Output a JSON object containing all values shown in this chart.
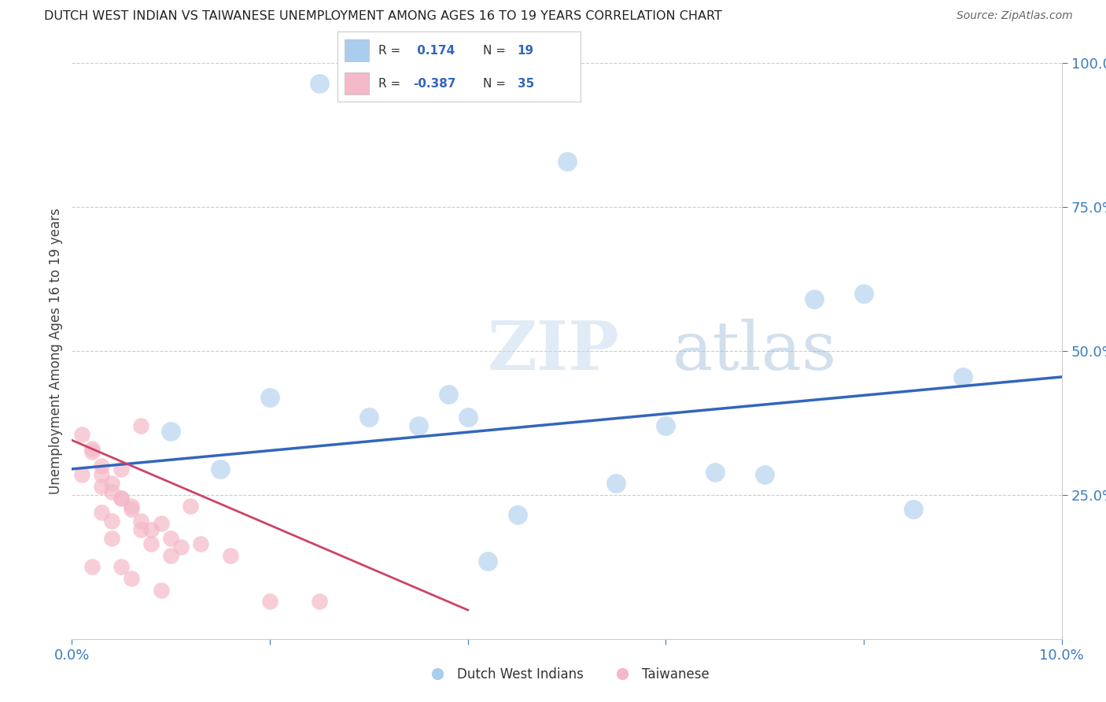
{
  "title": "DUTCH WEST INDIAN VS TAIWANESE UNEMPLOYMENT AMONG AGES 16 TO 19 YEARS CORRELATION CHART",
  "source": "Source: ZipAtlas.com",
  "ylabel": "Unemployment Among Ages 16 to 19 years",
  "xlim": [
    0.0,
    0.1
  ],
  "ylim": [
    0.0,
    1.0
  ],
  "xticks": [
    0.0,
    0.02,
    0.04,
    0.06,
    0.08,
    0.1
  ],
  "yticks": [
    0.25,
    0.5,
    0.75,
    1.0
  ],
  "xtick_labels": [
    "0.0%",
    "",
    "",
    "",
    "",
    "10.0%"
  ],
  "ytick_labels": [
    "25.0%",
    "50.0%",
    "75.0%",
    "100.0%"
  ],
  "blue_R": 0.174,
  "blue_N": 19,
  "pink_R": -0.387,
  "pink_N": 35,
  "blue_color": "#aaccee",
  "pink_color": "#f4b8c8",
  "blue_line_color": "#3366bb",
  "pink_line_color": "#cc4466",
  "watermark_zip": "ZIP",
  "watermark_atlas": "atlas",
  "blue_scatter_x": [
    0.025,
    0.01,
    0.015,
    0.02,
    0.03,
    0.035,
    0.04,
    0.05,
    0.055,
    0.06,
    0.07,
    0.075,
    0.085,
    0.09,
    0.045,
    0.038,
    0.065,
    0.08,
    0.042
  ],
  "blue_scatter_y": [
    0.965,
    0.36,
    0.295,
    0.42,
    0.385,
    0.37,
    0.385,
    0.83,
    0.27,
    0.37,
    0.285,
    0.59,
    0.225,
    0.455,
    0.215,
    0.425,
    0.29,
    0.6,
    0.135
  ],
  "pink_scatter_x": [
    0.001,
    0.002,
    0.003,
    0.004,
    0.005,
    0.006,
    0.007,
    0.008,
    0.009,
    0.01,
    0.011,
    0.012,
    0.003,
    0.004,
    0.005,
    0.006,
    0.007,
    0.008,
    0.009,
    0.01,
    0.002,
    0.003,
    0.004,
    0.005,
    0.006,
    0.007,
    0.001,
    0.002,
    0.003,
    0.004,
    0.005,
    0.013,
    0.016,
    0.02,
    0.025
  ],
  "pink_scatter_y": [
    0.355,
    0.33,
    0.285,
    0.255,
    0.295,
    0.23,
    0.205,
    0.19,
    0.2,
    0.175,
    0.16,
    0.23,
    0.22,
    0.175,
    0.125,
    0.105,
    0.19,
    0.165,
    0.085,
    0.145,
    0.125,
    0.3,
    0.27,
    0.245,
    0.225,
    0.37,
    0.285,
    0.325,
    0.265,
    0.205,
    0.245,
    0.165,
    0.145,
    0.065,
    0.065
  ],
  "blue_line_x": [
    0.0,
    0.1
  ],
  "blue_line_y": [
    0.295,
    0.455
  ],
  "pink_line_x": [
    0.0,
    0.04
  ],
  "pink_line_y": [
    0.345,
    0.05
  ]
}
